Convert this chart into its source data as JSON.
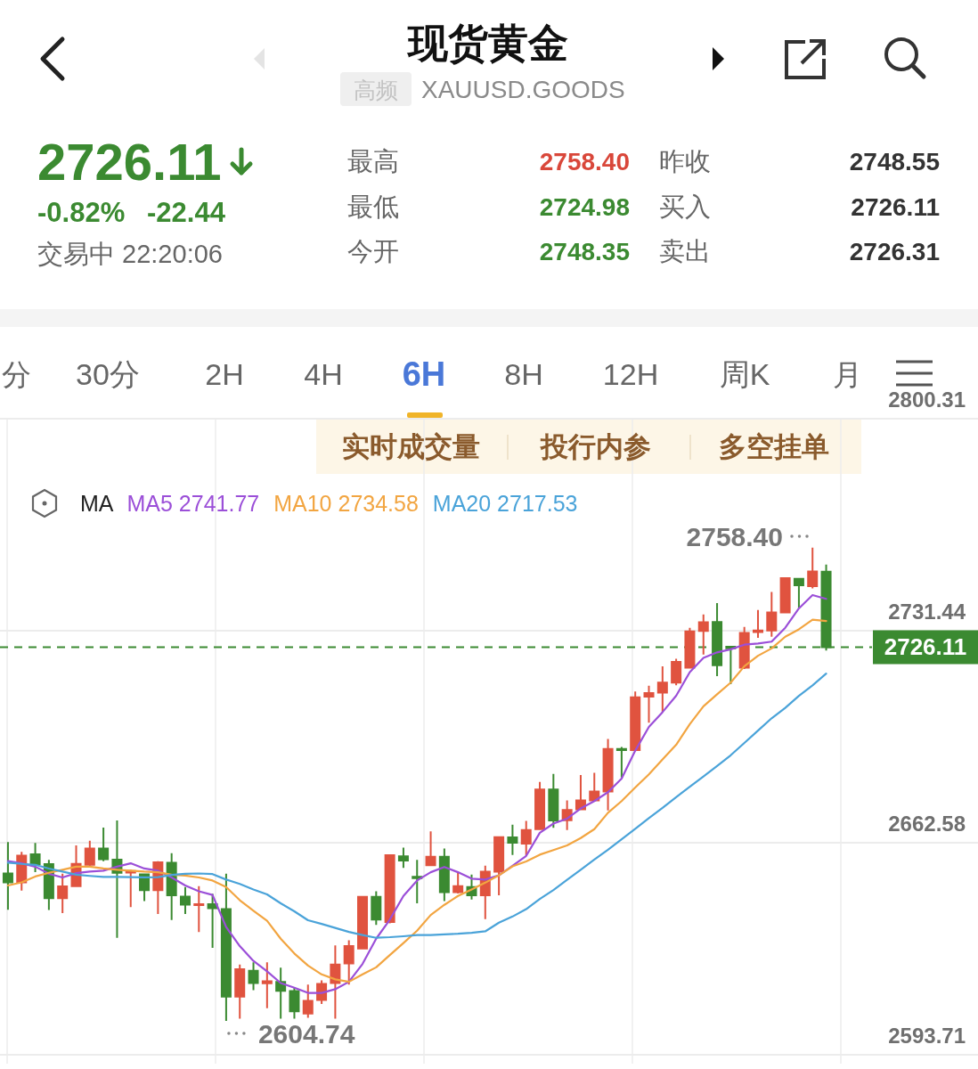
{
  "chart_data": {
    "type": "candlestick",
    "title": "现货黄金",
    "subtitle": "XAUUSD.GOODS",
    "categories": [
      null,
      null,
      null,
      null,
      null,
      null,
      null,
      null,
      null,
      null,
      null,
      null,
      null,
      null,
      null,
      null,
      null,
      null,
      null,
      null,
      null,
      null,
      null,
      null,
      null,
      null,
      null,
      null,
      null,
      null,
      null,
      null,
      null,
      null,
      null,
      null,
      null,
      null,
      null,
      null,
      null,
      null,
      null,
      null,
      null,
      null,
      null,
      null,
      null,
      null,
      null,
      null,
      null,
      null,
      null,
      null,
      null,
      null,
      null,
      null,
      null
    ],
    "ohlc": [
      [
        2652.6,
        2662.8,
        2640.8,
        2649.7
      ],
      [
        2649.7,
        2659.6,
        2647.0,
        2658.4
      ],
      [
        2658.8,
        2662.5,
        2653.0,
        2655.6
      ],
      [
        2655.6,
        2657.0,
        2640.7,
        2644.6
      ],
      [
        2644.6,
        2652.5,
        2639.7,
        2648.4
      ],
      [
        2648.5,
        2661.7,
        2648.2,
        2655.7
      ],
      [
        2655.4,
        2663.2,
        2654.8,
        2660.7
      ],
      [
        2660.7,
        2667.5,
        2656.6,
        2657.2
      ],
      [
        2657.1,
        2669.8,
        2631.7,
        2652.8
      ],
      [
        2652.9,
        2653.8,
        2641.7,
        2653.4
      ],
      [
        2652.3,
        2652.5,
        2643.6,
        2647.2
      ],
      [
        2647.2,
        2656.6,
        2639.4,
        2656.2
      ],
      [
        2656.1,
        2659.2,
        2637.5,
        2645.5
      ],
      [
        2645.1,
        2648.2,
        2639.4,
        2642.5
      ],
      [
        2642.3,
        2648.5,
        2633.6,
        2642.6
      ],
      [
        2642.6,
        2646.0,
        2628.4,
        2641.3
      ],
      [
        2641.0,
        2652.5,
        2604.74,
        2612.6
      ],
      [
        2612.6,
        2623.0,
        2605.4,
        2621.5
      ],
      [
        2621.0,
        2623.7,
        2614.7,
        2617.0
      ],
      [
        2616.9,
        2623.7,
        2608.8,
        2617.6
      ],
      [
        2617.4,
        2622.0,
        2605.4,
        2614.5
      ],
      [
        2614.4,
        2615.5,
        2605.4,
        2607.8
      ],
      [
        2607.1,
        2616.5,
        2605.7,
        2611.2
      ],
      [
        2611.5,
        2617.9,
        2610.2,
        2616.7
      ],
      [
        2617.0,
        2629.2,
        2605.4,
        2623.0
      ],
      [
        2623.4,
        2630.9,
        2616.5,
        2629.0
      ],
      [
        2628.2,
        2645.3,
        2628.0,
        2645.0
      ],
      [
        2645.0,
        2646.8,
        2635.9,
        2637.6
      ],
      [
        2636.8,
        2658.8,
        2636.4,
        2658.5
      ],
      [
        2658.2,
        2661.0,
        2654.4,
        2656.8
      ],
      [
        2651.5,
        2657.0,
        2642.9,
        2651.1
      ],
      [
        2655.3,
        2666.3,
        2655.1,
        2658.0
      ],
      [
        2658.0,
        2660.7,
        2643.6,
        2646.5
      ],
      [
        2646.5,
        2653.0,
        2646.1,
        2648.5
      ],
      [
        2648.2,
        2652.2,
        2644.1,
        2645.5
      ],
      [
        2645.5,
        2655.1,
        2637.8,
        2653.2
      ],
      [
        2653.2,
        2664.7,
        2645.5,
        2664.4
      ],
      [
        2664.3,
        2668.4,
        2658.6,
        2662.6
      ],
      [
        2662.3,
        2669.7,
        2658.3,
        2666.7
      ],
      [
        2667.0,
        2682.3,
        2666.7,
        2679.9
      ],
      [
        2679.9,
        2684.9,
        2667.4,
        2669.8
      ],
      [
        2669.9,
        2676.3,
        2666.7,
        2673.2
      ],
      [
        2673.4,
        2684.6,
        2673.2,
        2676.3
      ],
      [
        2676.3,
        2685.3,
        2676.1,
        2679.2
      ],
      [
        2679.2,
        2696.3,
        2673.1,
        2693.0
      ],
      [
        2693.0,
        2693.7,
        2683.8,
        2692.7
      ],
      [
        2692.7,
        2711.7,
        2692.3,
        2709.8
      ],
      [
        2710.0,
        2713.6,
        2701.6,
        2711.2
      ],
      [
        2711.3,
        2719.9,
        2705.0,
        2714.6
      ],
      [
        2714.6,
        2722.3,
        2713.7,
        2721.3
      ],
      [
        2719.4,
        2732.4,
        2719.4,
        2731.2
      ],
      [
        2731.4,
        2736.7,
        2723.7,
        2734.2
      ],
      [
        2734.3,
        2740.4,
        2716.7,
        2720.2
      ],
      [
        2726.2,
        2726.4,
        2714.1,
        2725.7
      ],
      [
        2719.4,
        2732.7,
        2719.0,
        2730.7
      ],
      [
        2731.0,
        2738.2,
        2729.1,
        2731.5
      ],
      [
        2731.5,
        2744.0,
        2729.5,
        2737.4
      ],
      [
        2737.4,
        2748.7,
        2737.2,
        2748.5
      ],
      [
        2748.3,
        2748.5,
        2738.9,
        2746.2
      ],
      [
        2745.9,
        2758.4,
        2745.2,
        2750.7
      ],
      [
        2750.6,
        2752.9,
        2725.0,
        2726.11
      ]
    ],
    "series": [
      {
        "name": "MA5 2741.77",
        "type": "line",
        "color": "#9b4fd8",
        "values": [
          2656.6,
          2655.9,
          2654.8,
          2652.5,
          2651.3,
          2652.7,
          2653.2,
          2653.5,
          2654.8,
          2655.9,
          2654.2,
          2653.5,
          2651.3,
          2648.7,
          2646.8,
          2645.6,
          2635.2,
          2629.0,
          2624.2,
          2620.8,
          2617.0,
          2615.5,
          2613.8,
          2613.8,
          2615.0,
          2617.4,
          2623.2,
          2631.4,
          2637.6,
          2645.3,
          2650.3,
          2653.0,
          2654.7,
          2653.0,
          2650.9,
          2650.6,
          2652.0,
          2655.1,
          2658.3,
          2665.8,
          2668.8,
          2670.4,
          2673.7,
          2676.1,
          2679.0,
          2683.4,
          2692.5,
          2700.2,
          2705.0,
          2710.3,
          2718.0,
          2722.6,
          2724.4,
          2725.4,
          2726.9,
          2727.3,
          2727.9,
          2732.4,
          2738.7,
          2743.0,
          2741.8
        ]
      },
      {
        "name": "MA10 2734.58",
        "type": "line",
        "color": "#f2a541",
        "values": [
          2648.7,
          2649.7,
          2651.6,
          2652.8,
          2653.8,
          2654.8,
          2654.8,
          2654.2,
          2653.8,
          2653.5,
          2653.2,
          2653.0,
          2652.2,
          2651.9,
          2651.3,
          2650.3,
          2648.2,
          2643.9,
          2640.5,
          2637.2,
          2631.4,
          2626.6,
          2622.7,
          2619.8,
          2618.2,
          2617.4,
          2619.8,
          2622.1,
          2626.1,
          2630.0,
          2634.0,
          2639.1,
          2642.4,
          2645.3,
          2647.4,
          2649.6,
          2652.0,
          2654.9,
          2656.5,
          2658.7,
          2660.2,
          2661.7,
          2664.1,
          2667.0,
          2672.3,
          2676.1,
          2680.5,
          2684.8,
          2689.6,
          2694.4,
          2701.1,
          2706.9,
          2710.8,
          2714.6,
          2719.9,
          2723.3,
          2725.7,
          2729.5,
          2731.9,
          2735.0,
          2734.6
        ]
      },
      {
        "name": "MA20 2717.53",
        "type": "line",
        "color": "#4aa3d9",
        "values": [
          2656.1,
          2655.7,
          2655.4,
          2654.2,
          2653.2,
          2652.2,
          2651.8,
          2651.5,
          2651.5,
          2651.4,
          2651.3,
          2651.4,
          2652.1,
          2652.5,
          2652.6,
          2652.4,
          2650.6,
          2649.2,
          2647.4,
          2645.8,
          2642.9,
          2640.3,
          2637.4,
          2636.2,
          2634.9,
          2633.6,
          2632.6,
          2631.7,
          2631.9,
          2632.2,
          2632.6,
          2632.6,
          2632.8,
          2633.0,
          2633.3,
          2633.8,
          2636.6,
          2638.6,
          2641.0,
          2644.3,
          2647.2,
          2650.5,
          2653.8,
          2657.1,
          2660.3,
          2663.7,
          2667.1,
          2670.6,
          2673.9,
          2677.4,
          2680.8,
          2684.1,
          2687.5,
          2691.0,
          2695.0,
          2699.0,
          2703.0,
          2706.4,
          2710.3,
          2713.7,
          2717.5
        ]
      }
    ],
    "legend": "top left",
    "legend_title": "MA",
    "ylim": [
      2593.71,
      2800.31
    ],
    "yticks": [
      2593.71,
      2662.58,
      2731.44,
      2800.31
    ],
    "grid": true,
    "tick_labels": "y",
    "ref_lines": [
      {
        "axis": "y",
        "value": 2726.11,
        "color": "#3b8a31",
        "line_style": "dashed"
      }
    ],
    "annotations": [
      "高频",
      "2726.11",
      "-0.82%",
      "-22.44",
      "交易中 22:20:06",
      "最高",
      "2758.40",
      "昨收",
      "2748.55",
      "最低",
      "2724.98",
      "买入",
      "2726.11",
      "今开",
      "2748.35",
      "卖出",
      "2726.31",
      "分",
      "30分",
      "2H",
      "4H",
      "6H",
      "8H",
      "12H",
      "周K",
      "月",
      "实时成交量",
      "投行内参",
      "多空挂单",
      "2758.40",
      {
        "text": "2604.74",
        "y": 2604.74
      },
      "2726.11"
    ]
  }
}
